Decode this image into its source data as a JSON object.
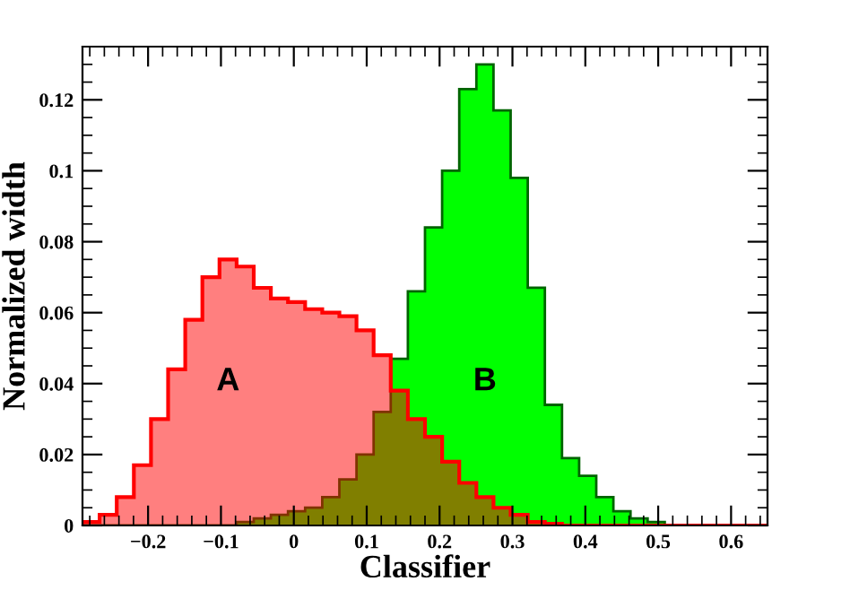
{
  "chart_data": {
    "type": "histogram",
    "xlabel": "Classifier",
    "ylabel": "Normalized width",
    "bins": [
      -0.29,
      -0.2665,
      -0.243,
      -0.2195,
      -0.196,
      -0.1725,
      -0.149,
      -0.1255,
      -0.102,
      -0.0785,
      -0.055,
      -0.0315,
      -0.008,
      0.0155,
      0.039,
      0.0625,
      0.086,
      0.1095,
      0.133,
      0.1565,
      0.18,
      0.2035,
      0.227,
      0.2505,
      0.274,
      0.2975,
      0.321,
      0.3445,
      0.368,
      0.3915,
      0.415,
      0.4385,
      0.462,
      0.4855,
      0.509,
      0.5325,
      0.556,
      0.5795,
      0.603,
      0.6265,
      0.65
    ],
    "series": [
      {
        "name": "B",
        "color": "#00ff00",
        "values": [
          0,
          0,
          0,
          0,
          0,
          0,
          0,
          0,
          0,
          0.001,
          0.002,
          0.003,
          0.004,
          0.005,
          0.008,
          0.013,
          0.02,
          0.032,
          0.047,
          0.066,
          0.084,
          0.1,
          0.123,
          0.13,
          0.117,
          0.098,
          0.067,
          0.034,
          0.019,
          0.014,
          0.008,
          0.004,
          0.002,
          0.001,
          0,
          0,
          0,
          0,
          0,
          0
        ]
      },
      {
        "name": "A",
        "color": "#ff0000",
        "values": [
          0.001,
          0.003,
          0.008,
          0.017,
          0.03,
          0.044,
          0.058,
          0.07,
          0.075,
          0.073,
          0.067,
          0.064,
          0.063,
          0.061,
          0.06,
          0.059,
          0.055,
          0.048,
          0.038,
          0.03,
          0.025,
          0.018,
          0.012,
          0.008,
          0.005,
          0.003,
          0.001,
          0.0005,
          0,
          0,
          0,
          0,
          0,
          0,
          0,
          0,
          0,
          0,
          0,
          0
        ]
      }
    ],
    "xlim": [
      -0.29,
      0.65
    ],
    "ylim": [
      0,
      0.135
    ],
    "xticks": [
      {
        "value": -0.2,
        "label": "−0.2"
      },
      {
        "value": -0.1,
        "label": "−0.1"
      },
      0,
      0.1,
      0.2,
      0.3,
      0.4,
      0.5,
      0.6
    ],
    "yticks": [
      0,
      0.02,
      0.04,
      0.06,
      0.08,
      0.1,
      0.12
    ],
    "grid": false,
    "legend": false
  }
}
